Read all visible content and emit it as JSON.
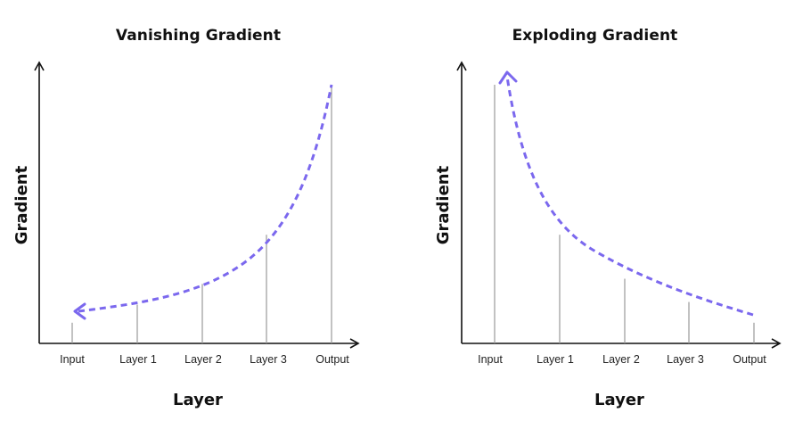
{
  "colors": {
    "curve": "#7b68ee",
    "axis": "#111111",
    "bar": "#9a9a9a"
  },
  "vanishing": {
    "title": "Vanishing Gradient",
    "xlabel": "Layer",
    "ylabel": "Gradient",
    "layers": [
      "Input",
      "Layer 1",
      "Layer 2",
      "Layer 3",
      "Output"
    ],
    "gradient": [
      0.08,
      0.15,
      0.23,
      0.42,
      1.0
    ],
    "arrow_direction": "toward Input"
  },
  "exploding": {
    "title": "Exploding Gradient",
    "xlabel": "Layer",
    "ylabel": "Gradient",
    "layers": [
      "Input",
      "Layer 1",
      "Layer 2",
      "Layer 3",
      "Output"
    ],
    "gradient": [
      1.0,
      0.42,
      0.25,
      0.16,
      0.08
    ],
    "arrow_direction": "toward Input"
  }
}
